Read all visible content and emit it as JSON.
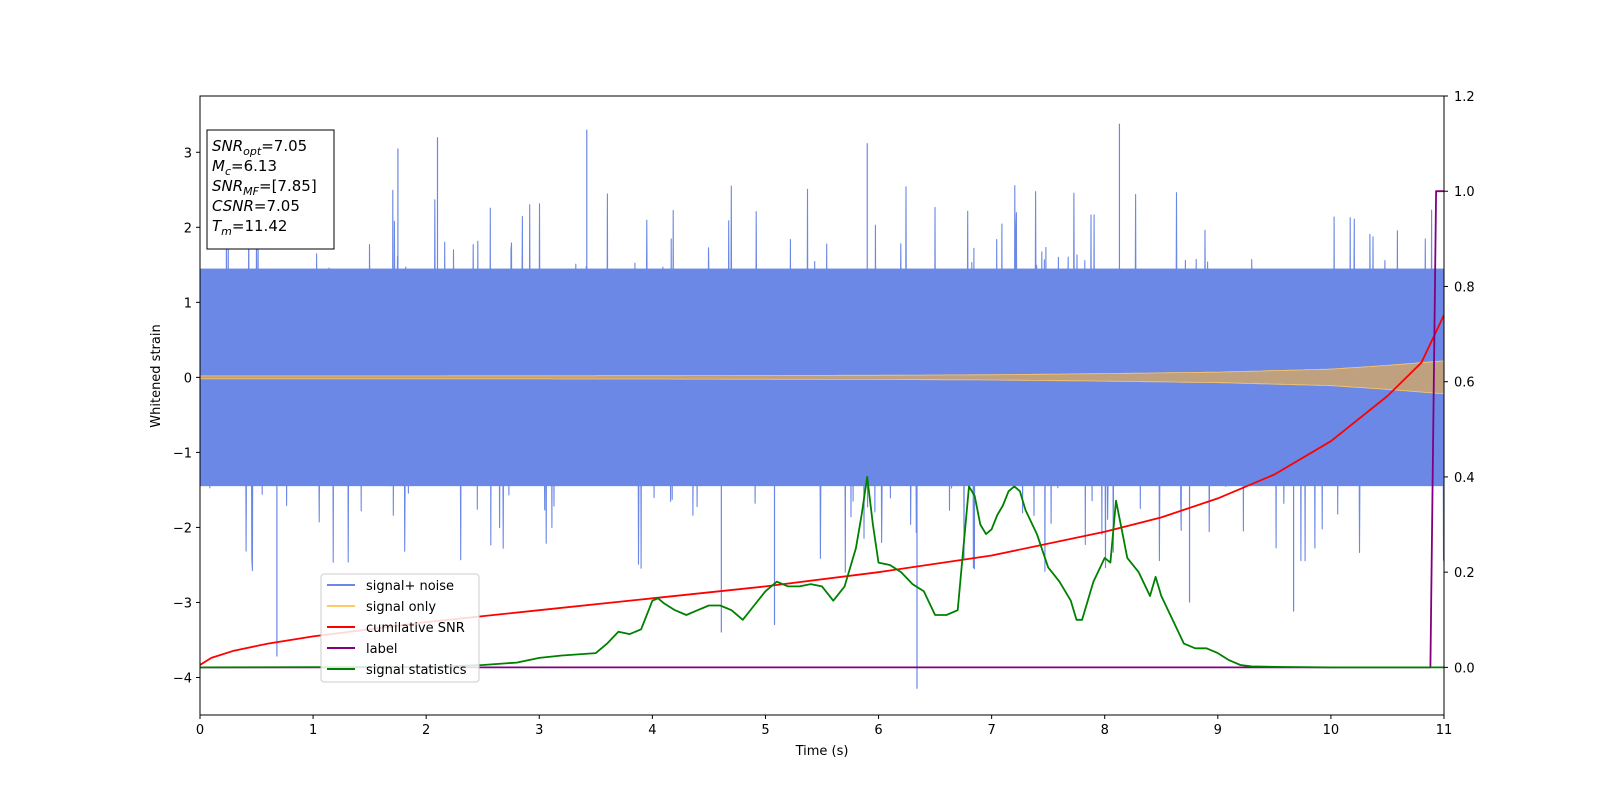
{
  "chart_data": {
    "type": "line",
    "xlabel": "Time (s)",
    "ylabel": "Whitened strain",
    "xlim": [
      0,
      11
    ],
    "ylim": [
      -4.5,
      3.75
    ],
    "y2lim": [
      -0.1,
      1.2
    ],
    "x_ticks": [
      "0",
      "1",
      "2",
      "3",
      "4",
      "5",
      "6",
      "7",
      "8",
      "9",
      "10",
      "11"
    ],
    "y_ticks": [
      "−4",
      "−3",
      "−2",
      "−1",
      "0",
      "1",
      "2",
      "3"
    ],
    "y2_ticks": [
      "0.0",
      "0.2",
      "0.4",
      "0.6",
      "0.8",
      "1.0",
      "1.2"
    ],
    "info_box": {
      "lines": [
        {
          "name": "SNR",
          "sub": "opt",
          "value": "=7.05"
        },
        {
          "name": "M",
          "sub": "c",
          "value": "=6.13"
        },
        {
          "name": "SNR",
          "sub": "MF",
          "value": "=[7.85]"
        },
        {
          "name": "CSNR",
          "sub": "",
          "value": "=7.05"
        },
        {
          "name": "T",
          "sub": "m",
          "value": "=11.42"
        }
      ]
    },
    "legend": {
      "placement": "lower-left",
      "entries": [
        {
          "label": "signal+ noise",
          "color": "#6b88e6"
        },
        {
          "label": "signal only",
          "color": "#ffc966"
        },
        {
          "label": "cumilative SNR",
          "color": "#ff0000"
        },
        {
          "label": "label",
          "color": "#800080"
        },
        {
          "label": "signal statistics",
          "color": "#008000"
        }
      ]
    },
    "series": [
      {
        "name": "signal+ noise",
        "axis": "left",
        "color": "#6b88e6",
        "kind": "noise",
        "band": [
          -1.45,
          1.45
        ],
        "spikes": [
          {
            "x": 0.68,
            "y": -3.72
          },
          {
            "x": 3.42,
            "y": 3.3
          },
          {
            "x": 6.34,
            "y": -4.15
          },
          {
            "x": 8.13,
            "y": 3.38
          },
          {
            "x": 4.61,
            "y": -3.4
          },
          {
            "x": 5.08,
            "y": -3.3
          },
          {
            "x": 9.67,
            "y": -3.12
          },
          {
            "x": 2.1,
            "y": 3.2
          },
          {
            "x": 5.9,
            "y": 3.12
          },
          {
            "x": 1.75,
            "y": 3.05
          },
          {
            "x": 8.75,
            "y": -3.0
          },
          {
            "x": 0.25,
            "y": 3.0
          }
        ]
      },
      {
        "name": "signal only",
        "axis": "left",
        "color": "#ffc966",
        "kind": "envelope",
        "x": [
          0,
          2,
          4,
          6,
          7,
          8,
          9,
          10,
          10.5,
          11
        ],
        "amp": [
          0.02,
          0.02,
          0.022,
          0.028,
          0.035,
          0.05,
          0.07,
          0.11,
          0.16,
          0.22
        ]
      },
      {
        "name": "cumilative SNR",
        "axis": "right",
        "color": "#ff0000",
        "x": [
          0,
          0.1,
          0.3,
          0.6,
          1,
          2,
          3,
          4,
          5,
          6,
          7,
          8,
          8.5,
          9,
          9.5,
          10,
          10.5,
          10.8,
          11
        ],
        "y": [
          0.005,
          0.02,
          0.035,
          0.05,
          0.065,
          0.095,
          0.12,
          0.145,
          0.17,
          0.2,
          0.235,
          0.285,
          0.315,
          0.355,
          0.405,
          0.475,
          0.57,
          0.64,
          0.74
        ]
      },
      {
        "name": "label",
        "axis": "right",
        "color": "#800080",
        "x": [
          0,
          10.88,
          10.93,
          11
        ],
        "y": [
          0,
          0,
          1.0,
          1.0
        ]
      },
      {
        "name": "signal statistics",
        "axis": "right",
        "color": "#008000",
        "x": [
          0,
          2,
          2.5,
          2.8,
          3.0,
          3.2,
          3.5,
          3.6,
          3.7,
          3.8,
          3.9,
          4.0,
          4.05,
          4.1,
          4.2,
          4.3,
          4.4,
          4.5,
          4.6,
          4.7,
          4.8,
          4.9,
          5.0,
          5.1,
          5.2,
          5.3,
          5.4,
          5.5,
          5.6,
          5.7,
          5.8,
          5.85,
          5.9,
          5.95,
          6.0,
          6.1,
          6.2,
          6.3,
          6.4,
          6.5,
          6.6,
          6.7,
          6.8,
          6.85,
          6.9,
          6.95,
          7.0,
          7.05,
          7.1,
          7.15,
          7.2,
          7.25,
          7.3,
          7.4,
          7.5,
          7.6,
          7.7,
          7.75,
          7.8,
          7.9,
          8.0,
          8.05,
          8.1,
          8.15,
          8.2,
          8.3,
          8.4,
          8.45,
          8.5,
          8.6,
          8.7,
          8.8,
          8.9,
          9.0,
          9.1,
          9.2,
          9.3,
          9.5,
          10,
          11
        ],
        "y": [
          0,
          0.001,
          0.005,
          0.01,
          0.02,
          0.025,
          0.03,
          0.05,
          0.075,
          0.07,
          0.08,
          0.14,
          0.145,
          0.135,
          0.12,
          0.11,
          0.12,
          0.13,
          0.13,
          0.12,
          0.1,
          0.13,
          0.16,
          0.18,
          0.17,
          0.17,
          0.175,
          0.17,
          0.14,
          0.17,
          0.25,
          0.32,
          0.4,
          0.3,
          0.22,
          0.215,
          0.2,
          0.175,
          0.16,
          0.11,
          0.11,
          0.12,
          0.38,
          0.36,
          0.3,
          0.28,
          0.29,
          0.32,
          0.34,
          0.37,
          0.38,
          0.37,
          0.33,
          0.28,
          0.21,
          0.18,
          0.14,
          0.1,
          0.1,
          0.18,
          0.23,
          0.22,
          0.35,
          0.29,
          0.23,
          0.2,
          0.15,
          0.19,
          0.15,
          0.1,
          0.05,
          0.04,
          0.04,
          0.03,
          0.015,
          0.005,
          0.002,
          0.001,
          0,
          0
        ]
      }
    ]
  }
}
